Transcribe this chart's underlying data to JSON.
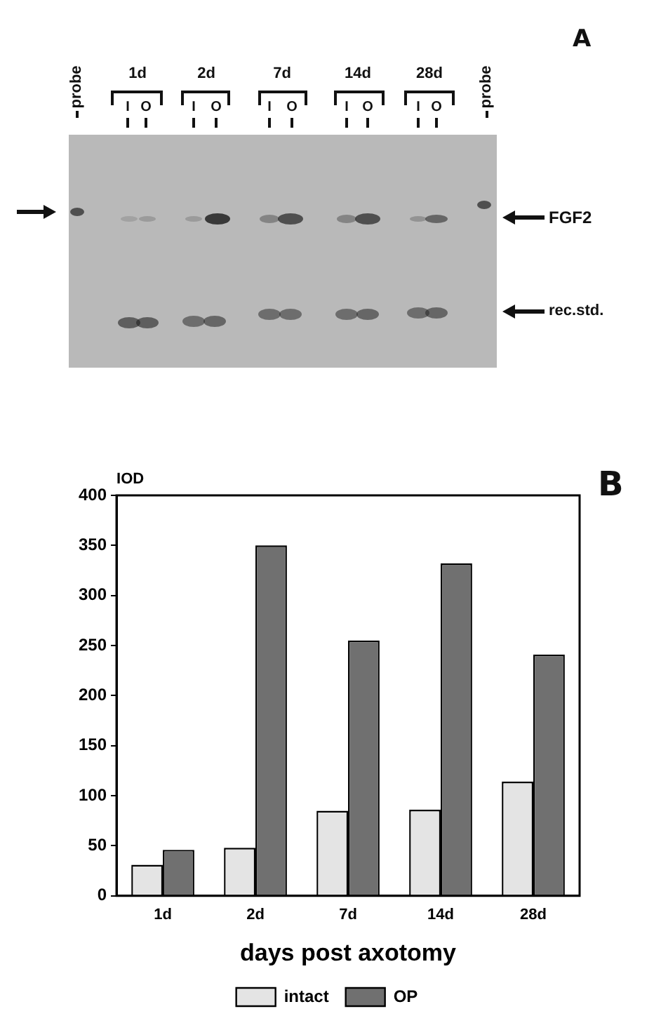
{
  "chart_data": [
    {
      "type": "other",
      "title": "A",
      "annotations": [
        "probe",
        "1d",
        "2d",
        "7d",
        "14d",
        "28d",
        "I",
        "O",
        "I",
        "O",
        "I",
        "O",
        "I",
        "O",
        "I",
        "O",
        "probe",
        "FGF2",
        "rec.std."
      ]
    },
    {
      "type": "bar",
      "annotations": [
        "B"
      ],
      "xlabel": "days post axotomy",
      "ylabel": "IOD",
      "categories": [
        "1d",
        "2d",
        "7d",
        "14d",
        "28d"
      ],
      "series": [
        {
          "name": "intact",
          "color": "#e4e4e4",
          "values": [
            31,
            48,
            85,
            86,
            114
          ]
        },
        {
          "name": "OP",
          "color": "#707070",
          "values": [
            46,
            350,
            255,
            332,
            241
          ]
        }
      ],
      "ylim": [
        0,
        400
      ],
      "yticks": [
        0,
        50,
        100,
        150,
        200,
        250,
        300,
        350,
        400
      ],
      "grid": false,
      "legend": "bottom"
    }
  ]
}
